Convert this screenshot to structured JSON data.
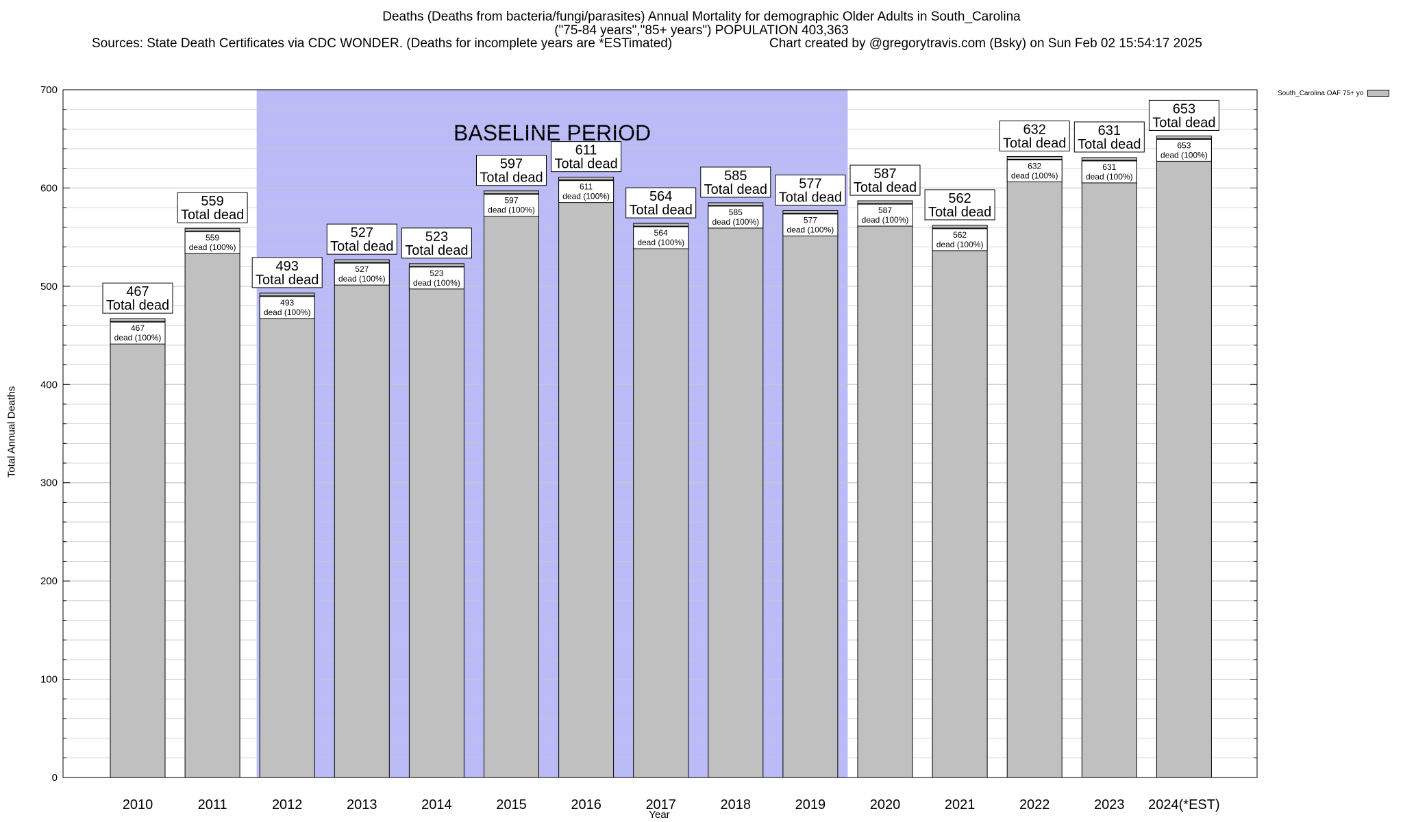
{
  "header": {
    "title_line1": "Deaths (Deaths from bacteria/fungi/parasites) Annual Mortality for demographic Older Adults in South_Carolina",
    "title_line2": "(\"75-84 years\",\"85+ years\") POPULATION 403,363",
    "sources": "Sources: State Death Certificates via CDC WONDER. (Deaths for incomplete years are *ESTimated)",
    "credit": "Chart created by @gregorytravis.com (Bsky) on Sun Feb 02 15:54:17 2025"
  },
  "chart_data": {
    "type": "bar",
    "categories": [
      "2010",
      "2011",
      "2012",
      "2013",
      "2014",
      "2015",
      "2016",
      "2017",
      "2018",
      "2019",
      "2020",
      "2021",
      "2022",
      "2023",
      "2024(*EST)"
    ],
    "series": [
      {
        "name": "South_Carolina OAF 75+ yo",
        "values": [
          467,
          559,
          493,
          527,
          523,
          597,
          611,
          564,
          585,
          577,
          587,
          562,
          632,
          631,
          653
        ]
      }
    ],
    "bar_label_top": "Total dead",
    "bar_label_inner": "dead (100%)",
    "baseline_label": "BASELINE PERIOD",
    "baseline_range": [
      "2012",
      "2019"
    ],
    "xlabel": "Year",
    "ylabel": "Total Annual Deaths",
    "ylim": [
      0,
      700
    ],
    "yticks": [
      0,
      100,
      200,
      300,
      400,
      500,
      600,
      700
    ],
    "grid": true,
    "legend_position": "top-right",
    "colors": {
      "bar": "#c0c0c0",
      "baseline": "#bbbbf8",
      "grid": "#c8c8c8"
    }
  }
}
